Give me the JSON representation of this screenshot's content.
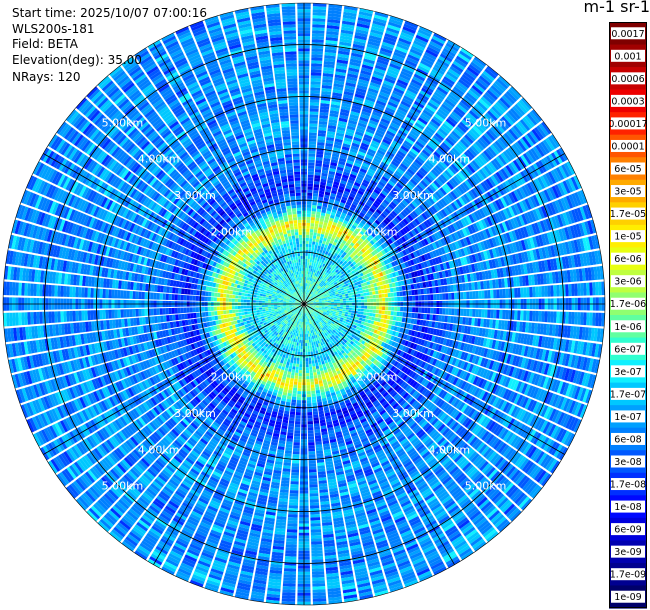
{
  "header": {
    "start_time": "Start time: 2025/10/07 07:00:16",
    "instrument": "WLS200s-181",
    "field": "Field: BETA",
    "elevation": "Elevation(deg): 35.00",
    "nrays": "NRays: 120"
  },
  "chart_data": {
    "type": "heatmap",
    "projection": "polar",
    "field": "BETA",
    "elevation_deg": 35.0,
    "n_rays": 120,
    "range_rings_km": [
      1,
      2,
      3,
      4,
      5
    ],
    "range_labels": [
      "2.00km",
      "3.00km",
      "4.00km",
      "5.00km"
    ],
    "max_range_km": 5.8,
    "colorbar": {
      "unit_label": "m-1 sr-1",
      "ticks": [
        "0.0017",
        "0.001",
        "0.0006",
        "0.0003",
        "0.00017",
        "0.0001",
        "6e-05",
        "3e-05",
        "1.7e-05",
        "1e-05",
        "6e-06",
        "3e-06",
        "1.7e-06",
        "1e-06",
        "6e-07",
        "3e-07",
        "1.7e-07",
        "1e-07",
        "6e-08",
        "3e-08",
        "1.7e-08",
        "1e-08",
        "6e-09",
        "3e-09",
        "1.7e-09",
        "1e-09"
      ],
      "colors": [
        "#7f0000",
        "#a10000",
        "#c80000",
        "#ee0000",
        "#ff2200",
        "#ff5500",
        "#ff8000",
        "#ffaa00",
        "#ffd000",
        "#ffee00",
        "#e8ff10",
        "#bfff40",
        "#90ff70",
        "#60ffa0",
        "#30ffd0",
        "#10f0ff",
        "#00c8ff",
        "#00a0ff",
        "#0080ff",
        "#0058ff",
        "#0030ff",
        "#0008ff",
        "#0000dd",
        "#0000b0",
        "#000090",
        "#00006a"
      ]
    },
    "radial_profile": [
      {
        "range_km": 0.2,
        "beta": 6e-07
      },
      {
        "range_km": 0.6,
        "beta": 4e-07
      },
      {
        "range_km": 1.0,
        "beta": 2e-07
      },
      {
        "range_km": 1.2,
        "beta": 3e-07
      },
      {
        "range_km": 1.4,
        "beta": 2e-06
      },
      {
        "range_km": 1.55,
        "beta": 1e-05
      },
      {
        "range_km": 1.7,
        "beta": 1e-06
      },
      {
        "range_km": 1.9,
        "beta": 1e-07
      },
      {
        "range_km": 2.2,
        "beta": 1.5e-08
      },
      {
        "range_km": 3.0,
        "beta": 8e-08
      },
      {
        "range_km": 5.8,
        "beta": 8e-08
      }
    ]
  }
}
